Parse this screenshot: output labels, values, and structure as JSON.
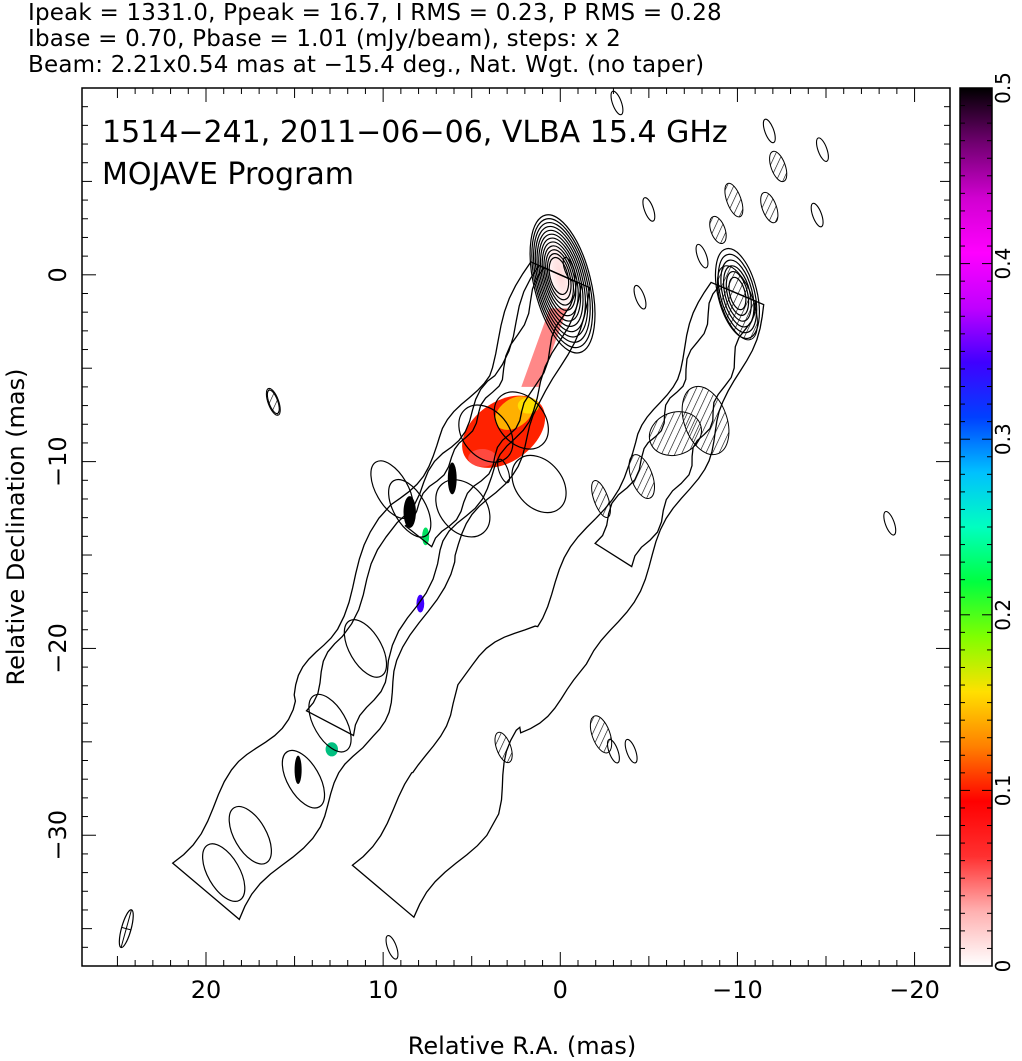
{
  "header": {
    "line1": "Ipeak = 1331.0, Ppeak = 16.7, I RMS = 0.23, P RMS = 0.28",
    "line2": "Ibase = 0.70, Pbase = 1.01 (mJy/beam), steps: x 2",
    "line3": "Beam: 2.21x0.54 mas at −15.4 deg., Nat. Wgt. (no taper)"
  },
  "chart_data": {
    "type": "heatmap",
    "title": "1514−241, 2011−06−06, VLBA 15.4 GHz",
    "subtitle": "MOJAVE Program",
    "xlabel": "Relative R.A. (mas)",
    "ylabel": "Relative Declination (mas)",
    "xlim": [
      27,
      -22
    ],
    "ylim": [
      -37,
      10
    ],
    "x_ticks": [
      {
        "value": 20,
        "label": "20"
      },
      {
        "value": 10,
        "label": "10"
      },
      {
        "value": 0,
        "label": "0"
      },
      {
        "value": -10,
        "label": "−10"
      },
      {
        "value": -20,
        "label": "−20"
      }
    ],
    "y_ticks": [
      {
        "value": 0,
        "label": "0"
      },
      {
        "value": -10,
        "label": "−10"
      },
      {
        "value": -20,
        "label": "−20"
      },
      {
        "value": -30,
        "label": "−30"
      }
    ],
    "colorbar": {
      "range": [
        0,
        0.5
      ],
      "ticks": [
        {
          "value": 0,
          "label": "0"
        },
        {
          "value": 0.1,
          "label": "0.1"
        },
        {
          "value": 0.2,
          "label": "0.2"
        },
        {
          "value": 0.3,
          "label": "0.3"
        },
        {
          "value": 0.4,
          "label": "0.4"
        },
        {
          "value": 0.5,
          "label": "0.5"
        }
      ],
      "colors": [
        "#ffffff",
        "#ffb0b0",
        "#ff3030",
        "#ff0000",
        "#ff8000",
        "#ffe000",
        "#80ff00",
        "#00ff40",
        "#00ffc0",
        "#00c0ff",
        "#0040ff",
        "#4000ff",
        "#c000ff",
        "#ff00ff",
        "#d000d0",
        "#700070",
        "#000000"
      ]
    },
    "left_source": {
      "peak": [
        0,
        0
      ],
      "jet_path": [
        [
          0,
          0
        ],
        [
          2.5,
          -6
        ],
        [
          5,
          -10
        ],
        [
          8,
          -14
        ],
        [
          11,
          -20
        ],
        [
          13,
          -24
        ],
        [
          16,
          -28
        ],
        [
          20,
          -33
        ]
      ]
    },
    "right_source": {
      "peak": [
        -10,
        -1
      ],
      "jet_path": [
        [
          -10,
          -1
        ],
        [
          -8,
          -6
        ],
        [
          -6,
          -10
        ],
        [
          -3,
          -15
        ],
        [
          0,
          -20
        ],
        [
          4,
          -23
        ],
        [
          6,
          -28
        ],
        [
          10,
          -33
        ]
      ]
    },
    "beam": {
      "x": 24.5,
      "y": -35,
      "major": 2.21,
      "minor": 0.54,
      "pa": -15.4
    }
  }
}
